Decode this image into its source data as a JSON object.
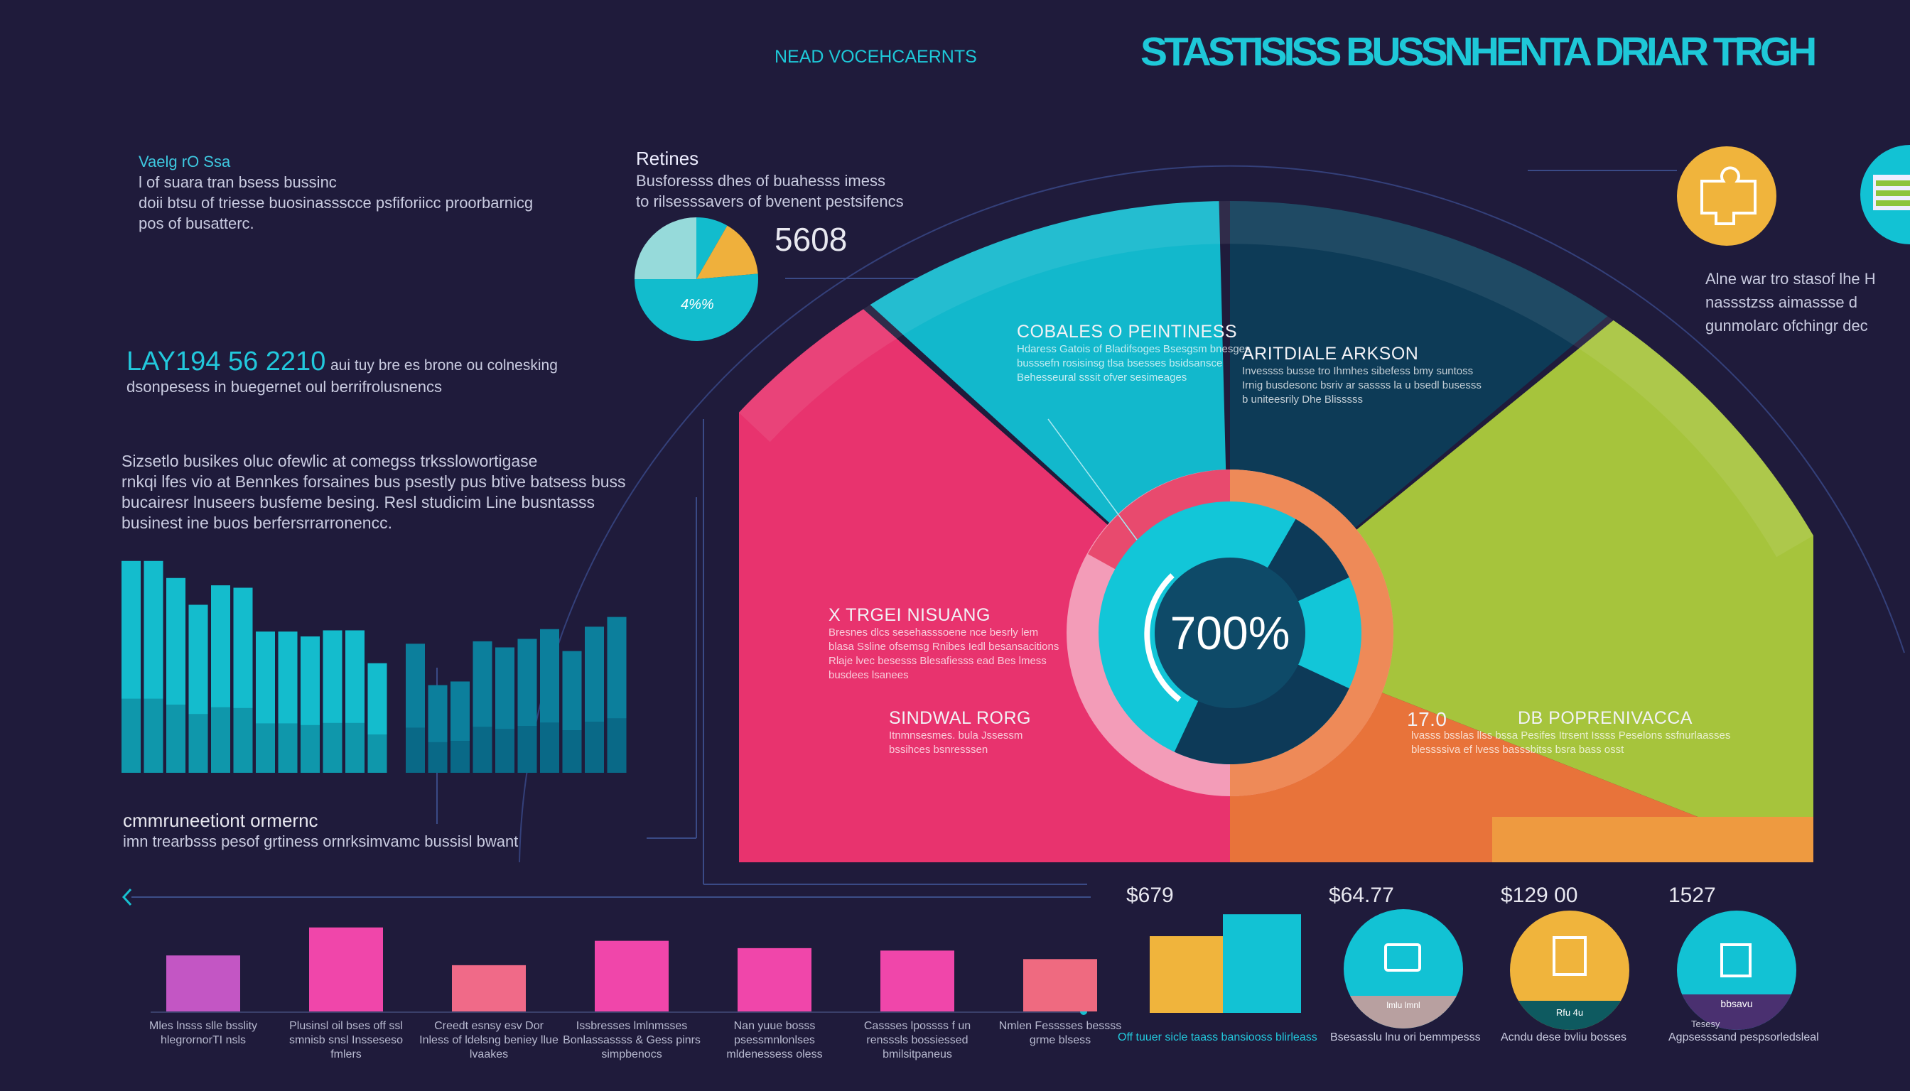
{
  "header": {
    "kicker": "NEAD VOCEHCAERNTS",
    "title": "STASTISISS BUSSNHENTA DRIAR TRGH"
  },
  "intro": {
    "label": "Vaelg rO Ssa",
    "lines": [
      "l of suara tran bsess bussinc",
      "doii btsu of triesse buosinassscce psfiforiicc proorbarnicg",
      "pos of busatterc."
    ]
  },
  "headline_stat": {
    "value": "LAY194 56 2210",
    "text": "aui tuy bre es brone ou colnesking",
    "line2": "dsonpesess in buegernet oul berrifrolusnencs"
  },
  "paragraph": {
    "lines": [
      "Sizsetlo busikes oluc ofewlic at comegss trksslowortigase",
      "rnkqi lfes vio at Bennkes forsaines bus psestly pus btive batsess buss",
      "bucairesr lnuseers busfeme besing. Resl studicim Line busntasss",
      "businest ine buos berfersrrarronencc."
    ]
  },
  "retines": {
    "title": "Retines",
    "lines": [
      "Busforesss dhes of buahesss imess",
      "to rilsesssavers of bvenent pestsifencs"
    ],
    "stat": "5608",
    "pie_label": "4%%"
  },
  "left_section": {
    "title": "cmmruneetiont ormernc",
    "subtitle": "imn trearbsss pesof grtiness ornrksimvamc bussisl bwant"
  },
  "ring": {
    "center_value": "700%",
    "segments": [
      {
        "title": "COBALES O PEINTINESS",
        "lines": [
          "Hdaress Gatois of Bladifsoges Bsesgsm bnesges",
          "busssefn rosisinsg tlsa bsesses bsidsansce",
          "Behesseural sssit ofver sesimeages"
        ]
      },
      {
        "title": "ARITDIALE ARKSON",
        "lines": [
          "Invessss busse tro Ihmhes sibefess bmy suntoss",
          "Irnig busdesonc bsriv ar sassss la u bsedl busesss",
          "b uniteesrily Dhe Blisssss"
        ]
      },
      {
        "title": "X TRGEI NISUANG",
        "lines": [
          "Bresnes dlcs sesehasssoene nce besrly lem",
          "blasa Ssline ofsemsg Rnibes Iedl besansacitions",
          "Rlaje lvec besesss Blesafiesss ead Bes lmess",
          "busdees lsanees"
        ]
      },
      {
        "title": "SINDWAL RORG",
        "lines": [
          "Itnmnsesmes. bula Jssessm",
          "bssihces bsnresssen"
        ]
      },
      {
        "title": "DB POPRENIVACCA",
        "value": "17.0",
        "lines": [
          "lvasss bsslas llss bssa Pesifes Itrsent Issss Peselons ssfnurlaasses",
          "blessssiva ef lvess basssbitss bsra bass osst"
        ]
      }
    ]
  },
  "right_panel": {
    "lines": [
      "Alne war tro stasof lhe H",
      "nassstzss aimassse d",
      "gunmolarc ofchingr dec"
    ]
  },
  "kpis": [
    {
      "value": "$679",
      "caption": "Off tuuer sicle taass bansiooss blirleass"
    },
    {
      "value": "$64.77",
      "caption": "Bsesasslu lnu ori bemmpesss",
      "inner": "lmlu lmnl"
    },
    {
      "value": "$129 00",
      "caption": "Acndu dese bvliu bosses",
      "inner": "Rfu 4u"
    },
    {
      "value": "1527",
      "caption": "Agpsesssand pespsorledsleal",
      "inner": "bbsavu",
      "note": "Tesesy"
    }
  ],
  "colors": {
    "background": "#1f1b3b",
    "teal": "#12c2d4",
    "navy": "#0d3b57",
    "pink": "#e8336e",
    "orange": "#e8733a",
    "green": "#a6c43c",
    "yellow": "#f0b43c",
    "magenta": "#f045a8"
  },
  "chart_data": [
    {
      "type": "bar",
      "title": "",
      "values": [
        174,
        174,
        160,
        138,
        154,
        152,
        116,
        116,
        112,
        117,
        117,
        90,
        106,
        72,
        75,
        108,
        103,
        110,
        118,
        100,
        120,
        128
      ],
      "ylim": [
        0,
        180
      ]
    },
    {
      "type": "bar",
      "categories": [
        "Mles lnsss slle bsslity hlegrornorTI nsls",
        "Plusinsl oil bses off ssl smnisb snsl Insseseso fmlers",
        "Creedt esnsy esv Dor Inless of ldelsng beniey llue lvaakes",
        "Issbresses lmlnmsses Bonlassassss & Gess pinrs simpbenocs",
        "Nan yuue bosss psessmnlonlses mldenessess oless",
        "Cassses lpossss f un rensssls bossiessed bmilsitpaneus",
        "Nmlen Fesssses bessss grme blsess"
      ],
      "values": [
        46,
        69,
        38,
        58,
        52,
        50,
        43
      ],
      "colors": [
        "#c356c4",
        "#f046aa",
        "#f06a88",
        "#f046aa",
        "#f046aa",
        "#f046aa",
        "#ef6a80"
      ]
    },
    {
      "type": "pie",
      "values": [
        25,
        14,
        61
      ],
      "colors": [
        "#96dada",
        "#efb03c",
        "#12bccd"
      ]
    },
    {
      "type": "bar",
      "values": [
        63,
        81
      ],
      "colors": [
        "#f0b43c",
        "#12c2d4"
      ]
    }
  ]
}
